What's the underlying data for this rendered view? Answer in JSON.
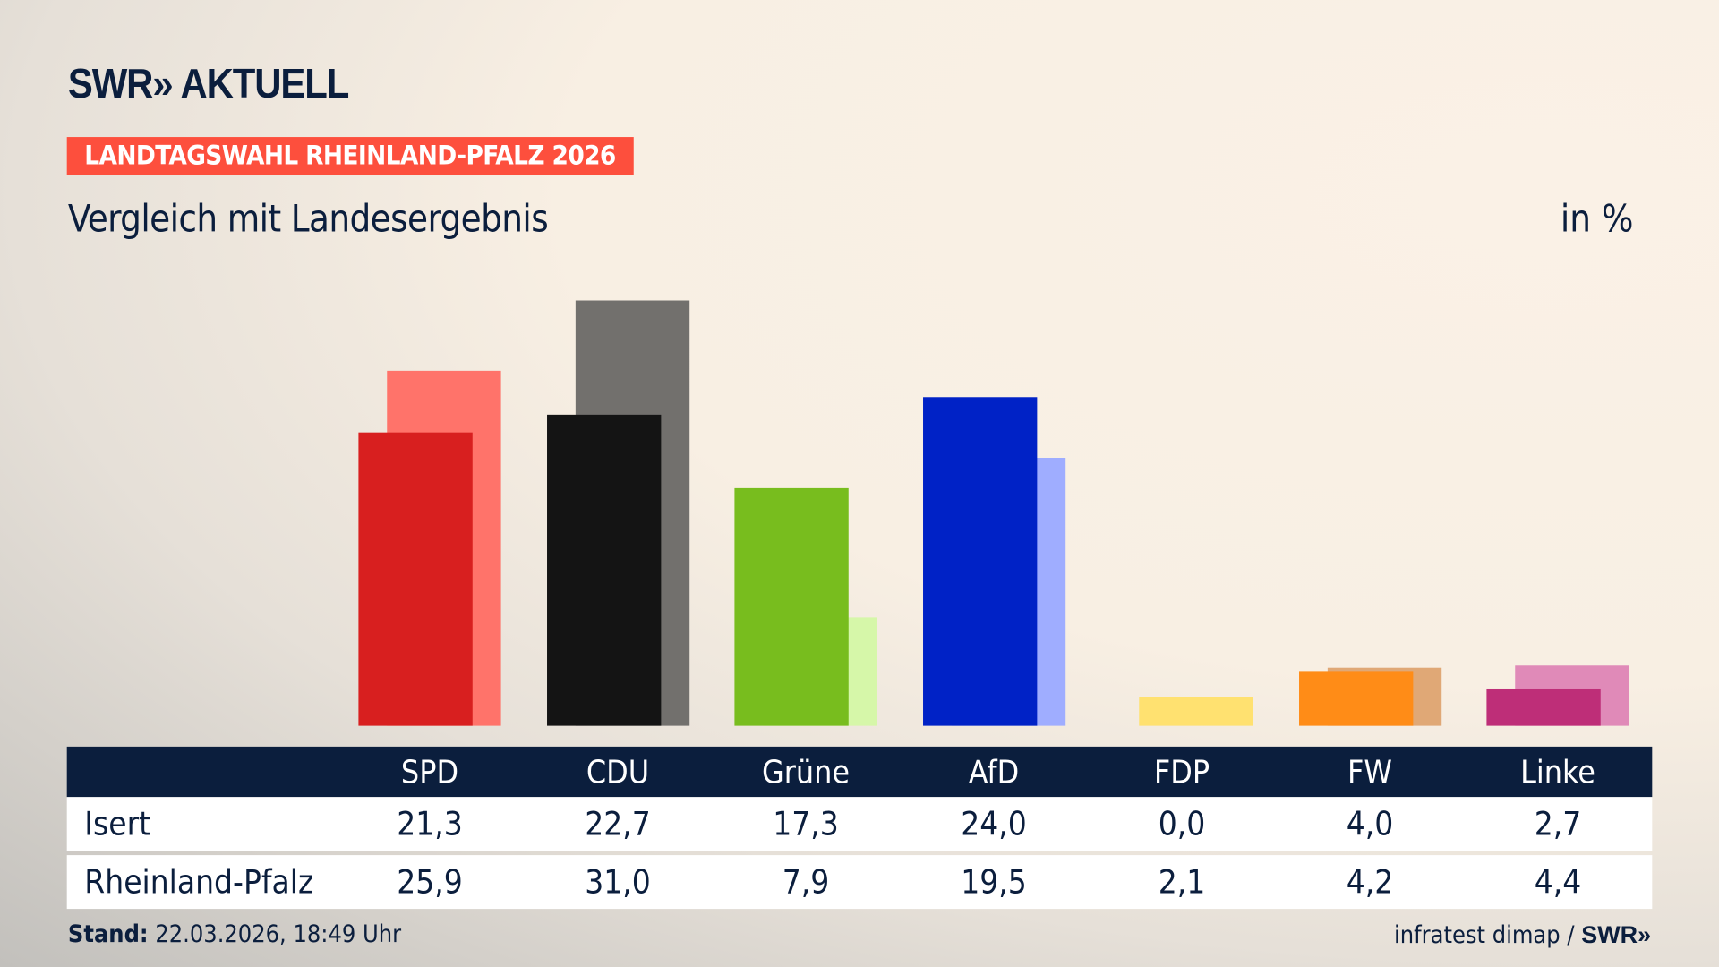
{
  "header": {
    "logo": "SWR» AKTUELL",
    "banner": "LANDTAGSWAHL RHEINLAND-PFALZ 2026",
    "subtitle": "Vergleich mit Landesergebnis",
    "unit": "in %"
  },
  "chart_data": {
    "type": "bar",
    "categories": [
      "SPD",
      "CDU",
      "Grüne",
      "AfD",
      "FDP",
      "FW",
      "Linke"
    ],
    "series": [
      {
        "name": "Isert",
        "values": [
          21.3,
          22.7,
          17.3,
          24.0,
          0.0,
          4.0,
          2.7
        ],
        "display": [
          "21,3",
          "22,7",
          "17,3",
          "24,0",
          "0,0",
          "4,0",
          "2,7"
        ],
        "colors": [
          "#d81f1f",
          "#141414",
          "#78bd1e",
          "#0022c6",
          "#ffe170",
          "#ff8c17",
          "#be2e78"
        ]
      },
      {
        "name": "Rheinland-Pfalz",
        "values": [
          25.9,
          31.0,
          7.9,
          19.5,
          2.1,
          4.2,
          4.4
        ],
        "display": [
          "25,9",
          "31,0",
          "7,9",
          "19,5",
          "2,1",
          "4,2",
          "4,4"
        ],
        "colors": [
          "#ff736a",
          "#72706d",
          "#d6f7a9",
          "#9fadff",
          "#ffe170",
          "#e0a876",
          "#e08ab8"
        ]
      }
    ],
    "ylim": [
      0,
      31
    ]
  },
  "footer": {
    "stand_label": "Stand:",
    "stand_value": "22.03.2026, 18:49 Uhr",
    "source": "infratest dimap /",
    "source_logo": "SWR»"
  }
}
